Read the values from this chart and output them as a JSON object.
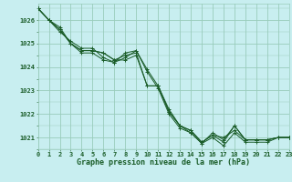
{
  "title": "Graphe pression niveau de la mer (hPa)",
  "background_color": "#c8eef0",
  "grid_color": "#99ccbb",
  "line_color": "#1a5c28",
  "x_min": 0,
  "x_max": 23,
  "y_min": 1020.5,
  "y_max": 1026.7,
  "y_ticks": [
    1021,
    1022,
    1023,
    1024,
    1025,
    1026
  ],
  "x_ticks": [
    0,
    1,
    2,
    3,
    4,
    5,
    6,
    7,
    8,
    9,
    10,
    11,
    12,
    13,
    14,
    15,
    16,
    17,
    18,
    19,
    20,
    21,
    22,
    23
  ],
  "series": [
    [
      1026.5,
      1026.0,
      1025.7,
      1025.0,
      1024.7,
      1024.7,
      1024.6,
      1024.3,
      1024.3,
      1024.5,
      1023.2,
      1023.2,
      1022.1,
      1021.5,
      1021.3,
      1020.8,
      1021.1,
      1021.0,
      1021.3,
      1020.9,
      1020.9,
      1020.9,
      1021.0,
      1021.0
    ],
    [
      1026.5,
      1026.0,
      1025.6,
      1025.0,
      1024.7,
      1024.7,
      1024.6,
      1024.3,
      1024.5,
      1024.6,
      1023.2,
      1023.2,
      1022.1,
      1021.5,
      1021.3,
      1020.8,
      1021.1,
      1020.8,
      1021.5,
      1020.9,
      1020.9,
      1020.9,
      1021.0,
      1021.0
    ],
    [
      1026.5,
      1026.0,
      1025.6,
      1025.0,
      1024.6,
      1024.6,
      1024.3,
      1024.2,
      1024.4,
      1024.7,
      1023.8,
      1023.1,
      1022.0,
      1021.4,
      1021.2,
      1020.75,
      1021.0,
      1020.65,
      1021.2,
      1020.8,
      1020.8,
      1020.8,
      1021.0,
      1021.0
    ],
    [
      1026.5,
      1026.0,
      1025.5,
      1025.1,
      1024.8,
      1024.8,
      1024.4,
      1024.2,
      1024.6,
      1024.7,
      1023.9,
      1023.2,
      1022.2,
      1021.5,
      1021.2,
      1020.75,
      1021.2,
      1020.9,
      1021.5,
      1020.9,
      1020.9,
      1020.9,
      1021.0,
      1021.0
    ]
  ]
}
